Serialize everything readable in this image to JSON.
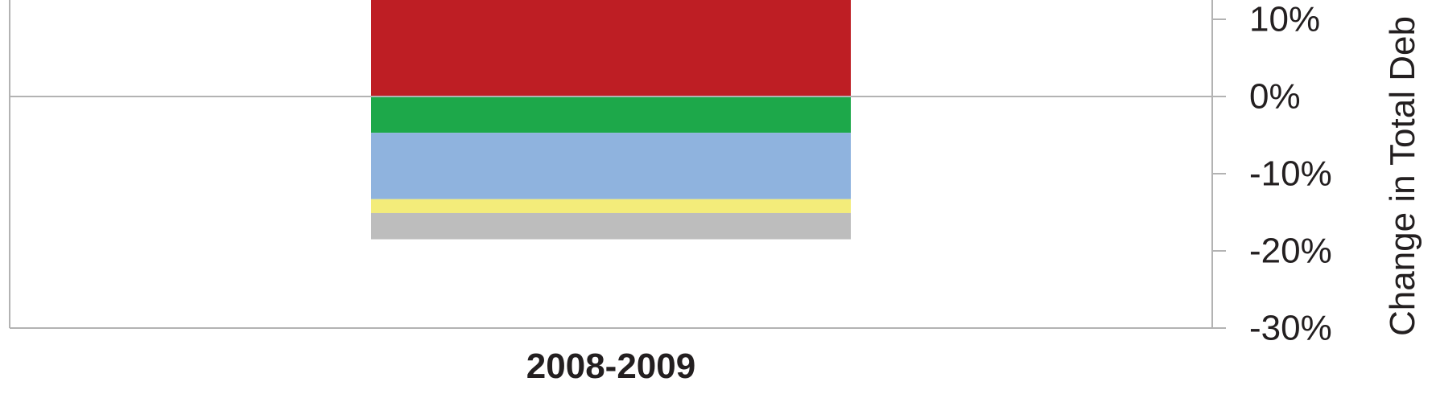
{
  "chart_data": {
    "type": "bar",
    "stacked": true,
    "categories": [
      "2008-2009"
    ],
    "series": [
      {
        "values": [
          14.0
        ],
        "color": "#be1e24"
      },
      {
        "values": [
          -4.7
        ],
        "color": "#1da84a"
      },
      {
        "values": [
          -8.6
        ],
        "color": "#8fb3de"
      },
      {
        "values": [
          -1.8
        ],
        "color": "#f3ec7a"
      },
      {
        "values": [
          -3.4
        ],
        "color": "#bdbdbd"
      }
    ],
    "ylim": [
      -30,
      15
    ],
    "y_ticks": [
      -30,
      -20,
      -10,
      0,
      10
    ],
    "y_tick_labels": [
      "-30%",
      "-20%",
      "-10%",
      "0%",
      "10%"
    ],
    "ylabel": "Change in Total Deb",
    "xlabel": "",
    "grid": false,
    "legend": "none",
    "y_axis_side": "right"
  }
}
